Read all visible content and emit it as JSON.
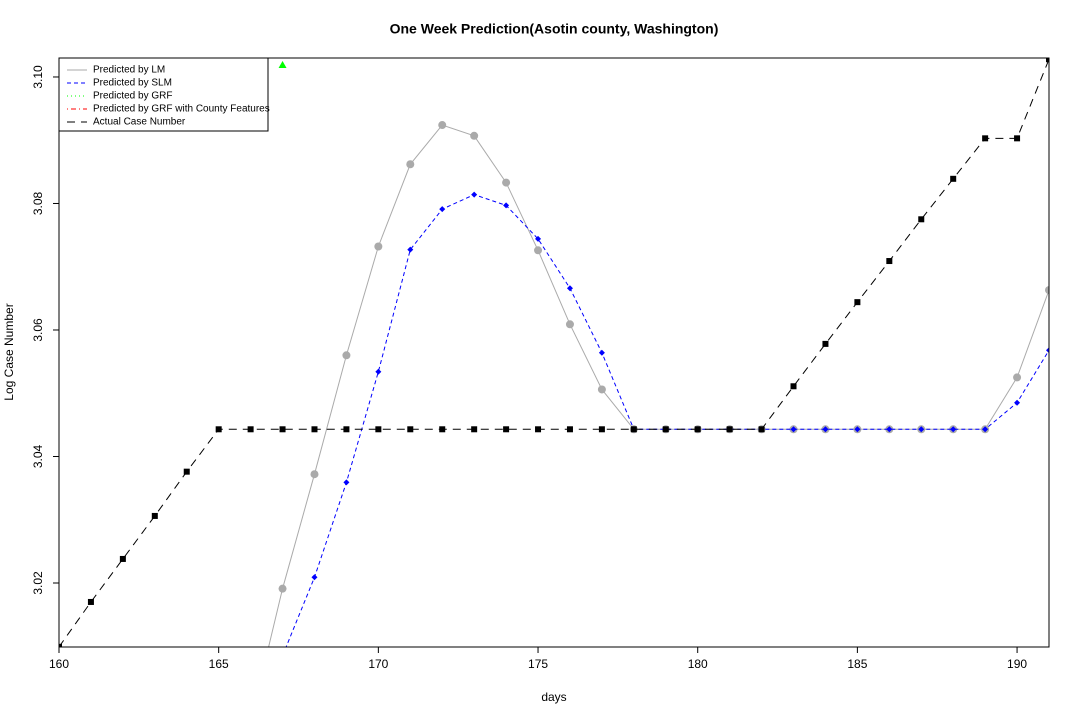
{
  "chart_data": {
    "type": "line",
    "title": "One Week Prediction(Asotin county, Washington)",
    "x_label": "days",
    "y_label": "Log Case Number",
    "x": [
      160,
      161,
      162,
      163,
      164,
      165,
      166,
      167,
      168,
      169,
      170,
      171,
      172,
      173,
      174,
      175,
      176,
      177,
      178,
      179,
      180,
      181,
      182,
      183,
      184,
      185,
      186,
      187,
      188,
      189,
      190,
      191
    ],
    "xlim": [
      160,
      191
    ],
    "ylim": [
      3.00988,
      3.103
    ],
    "xticks": [
      160,
      165,
      170,
      175,
      180,
      185,
      190
    ],
    "yticks": [
      3.02,
      3.04,
      3.06,
      3.08,
      {
        "value": 3.1,
        "label": "3.10"
      }
    ],
    "legend": "top-left",
    "series": [
      {
        "name": "Predicted by LM",
        "color": "#aaaaaa",
        "linestyle": "solid",
        "marker": "circle",
        "values": [
          null,
          null,
          null,
          null,
          null,
          null,
          2.998,
          3.0191,
          3.0372,
          3.056,
          3.0732,
          3.0862,
          3.0924,
          3.0907,
          3.0833,
          3.0726,
          3.0609,
          3.0506,
          3.0443,
          3.0443,
          3.0443,
          3.0443,
          3.0443,
          3.0443,
          3.0443,
          3.0443,
          3.0443,
          3.0443,
          3.0443,
          3.0443,
          3.0525,
          3.0663
        ]
      },
      {
        "name": "Predicted by SLM",
        "color": "#0000ff",
        "linestyle": "dashed",
        "marker": "diamond",
        "values": [
          null,
          null,
          null,
          null,
          null,
          null,
          null,
          3.0085,
          3.0209,
          3.0359,
          3.0534,
          3.0727,
          3.0791,
          3.0814,
          3.0797,
          3.0744,
          3.0666,
          3.0564,
          3.0443,
          3.0443,
          3.0443,
          3.0443,
          3.0443,
          3.0443,
          3.0443,
          3.0443,
          3.0443,
          3.0443,
          3.0443,
          3.0443,
          3.0485,
          3.0568
        ]
      },
      {
        "name": "Predicted by GRF",
        "color": "#00ff00",
        "linestyle": "dotted",
        "marker": "triangle",
        "values": [
          null,
          null,
          null,
          null,
          null,
          null,
          null,
          3.1019,
          null,
          null,
          null,
          null,
          null,
          null,
          null,
          null,
          null,
          null,
          null,
          null,
          null,
          null,
          null,
          null,
          null,
          null,
          null,
          null,
          null,
          null,
          null,
          null
        ]
      },
      {
        "name": "Predicted by GRF with County Features",
        "color": "#ff0000",
        "linestyle": "dotdash",
        "marker": "circle",
        "values": [
          null,
          null,
          null,
          null,
          null,
          null,
          null,
          null,
          null,
          null,
          null,
          null,
          null,
          null,
          null,
          null,
          null,
          null,
          null,
          null,
          null,
          null,
          null,
          null,
          null,
          null,
          null,
          null,
          null,
          null,
          null,
          null
        ]
      },
      {
        "name": "Actual Case Number",
        "color": "#000000",
        "linestyle": "longdash",
        "marker": "square",
        "values": [
          3.0099,
          3.017,
          3.0238,
          3.0306,
          3.0376,
          3.0443,
          3.0443,
          3.0443,
          3.0443,
          3.0443,
          3.0443,
          3.0443,
          3.0443,
          3.0443,
          3.0443,
          3.0443,
          3.0443,
          3.0443,
          3.0443,
          3.0443,
          3.0443,
          3.0443,
          3.0443,
          3.0511,
          3.0578,
          3.0644,
          3.0709,
          3.0775,
          3.0839,
          3.0903,
          3.0903,
          3.1028
        ]
      }
    ]
  }
}
